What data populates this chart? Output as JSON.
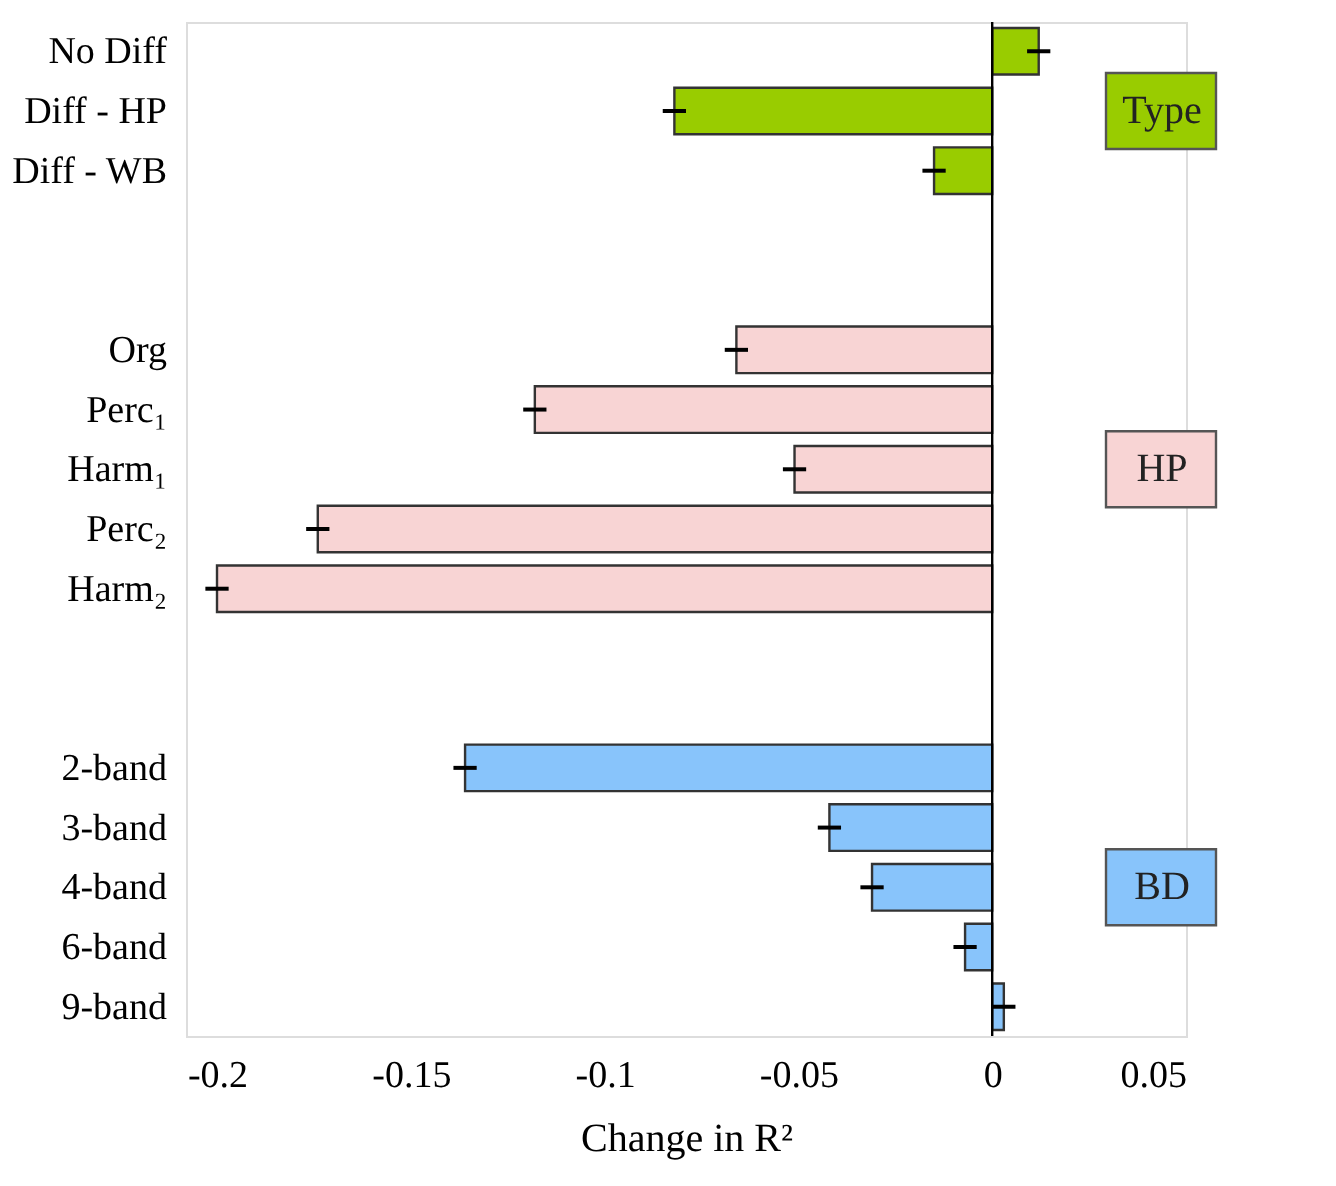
{
  "chart_data": {
    "type": "bar",
    "orientation": "horizontal",
    "xlabel": "Change in R²",
    "categories": [
      "No Diff",
      "Diff - HP",
      "Diff - WB",
      null,
      null,
      "Org",
      "Perc₁",
      "Harm₁",
      "Perc₂",
      "Harm₂",
      null,
      null,
      "2-band",
      "3-band",
      "4-band",
      "6-band",
      "9-band"
    ],
    "series": [
      {
        "name": "Type",
        "color": "#99cc00",
        "values": [
          0.012,
          -0.082,
          -0.015,
          null,
          null,
          null,
          null,
          null,
          null,
          null,
          null,
          null,
          null,
          null,
          null,
          null,
          null
        ],
        "errors": [
          0.003,
          0.003,
          0.003,
          null,
          null,
          null,
          null,
          null,
          null,
          null,
          null,
          null,
          null,
          null,
          null,
          null,
          null
        ]
      },
      {
        "name": "HP",
        "color": "#f8d4d4",
        "values": [
          null,
          null,
          null,
          null,
          null,
          -0.066,
          -0.118,
          -0.051,
          -0.174,
          -0.2,
          null,
          null,
          null,
          null,
          null,
          null,
          null
        ],
        "errors": [
          null,
          null,
          null,
          null,
          null,
          0.003,
          0.003,
          0.003,
          0.003,
          0.003,
          null,
          null,
          null,
          null,
          null,
          null,
          null
        ]
      },
      {
        "name": "BD",
        "color": "#88c4fb",
        "values": [
          null,
          null,
          null,
          null,
          null,
          null,
          null,
          null,
          null,
          null,
          null,
          null,
          -0.136,
          -0.042,
          -0.031,
          -0.007,
          0.003
        ],
        "errors": [
          null,
          null,
          null,
          null,
          null,
          null,
          null,
          null,
          null,
          null,
          null,
          null,
          0.003,
          0.003,
          0.003,
          0.003,
          0.003
        ]
      }
    ],
    "xlim": [
      -0.208,
      0.05
    ],
    "xticks": [
      -0.2,
      -0.15,
      -0.1,
      -0.05,
      0,
      0.05
    ],
    "ref_lines": [
      {
        "axis": "x",
        "value": 0,
        "color": "#000000"
      }
    ],
    "grid": false,
    "legend": false
  }
}
